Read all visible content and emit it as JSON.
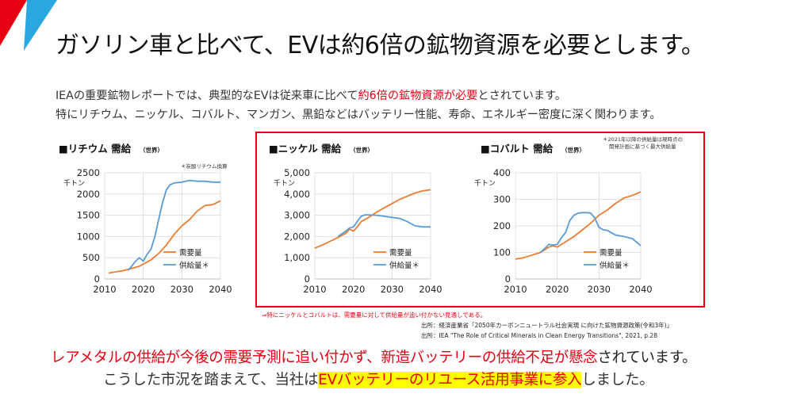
{
  "slide": {
    "title": "ガソリン車と比べて、EVは約6倍の鉱物資源を必要とします。",
    "intro_line1_a": "IEAの重要鉱物レポートでは、典型的なEVは従来車に比べて",
    "intro_line1_b": "約6倍の鉱物資源が必要",
    "intro_line1_c": "とされています。",
    "intro_line2": "特にリチウム、ニッケル、コバルト、マンガン、黒鉛などはバッテリー性能、寿命、エネルギー密度に深く関わります。",
    "note": "⇒特にニッケルとコバルトは、需要量に対して供給量が追い付かない見通しである。",
    "source1": "出所：経済産業省「2050年カーボンニュートラル社会実現 に向けた鉱物資源政策(令和3年)」",
    "source2": "出所：IEA \"The Role of Critical Minerals in Clean Energy Transitions\", 2021, p.28",
    "conclusion1_a": "レアメタルの供給が今後の需要予測に追い付かず、新造バッテリーの供給不足が懸念",
    "conclusion1_b": "されています。",
    "conclusion2_a": "こうした市況を踏まえて、当社は",
    "conclusion2_b": "EVバッテリーのリユース活用事業に参入",
    "conclusion2_c": "しました。",
    "colors": {
      "accent_red": "#e60012",
      "demand": "#ed7d31",
      "supply": "#5b9bd5",
      "highlight": "#ffff00",
      "corner_blue": "#29a8e0"
    }
  },
  "chart_data": [
    {
      "type": "line",
      "title": "■リチウム 需給",
      "title_sub": "（世界）",
      "note": "＊炭酸リチウム換算",
      "ylabel": "千トン",
      "xlim": [
        2010,
        2040
      ],
      "ylim": [
        0,
        2500
      ],
      "xticks": [
        "2010",
        "2020",
        "2030",
        "2040"
      ],
      "yticks": [
        "0",
        "500",
        "1000",
        "1500",
        "2000",
        "2500"
      ],
      "ytick_values": [
        0,
        500,
        1000,
        1500,
        2000,
        2500
      ],
      "grid": true,
      "legend_position": "lower-right",
      "series": [
        {
          "name": "需要量",
          "color": "#ed7d31",
          "x": [
            2011,
            2013,
            2015,
            2017,
            2019,
            2020,
            2021,
            2022,
            2024,
            2026,
            2028,
            2030,
            2032,
            2034,
            2036,
            2038,
            2040
          ],
          "y": [
            140,
            170,
            200,
            250,
            300,
            350,
            400,
            450,
            600,
            800,
            1050,
            1250,
            1400,
            1600,
            1730,
            1750,
            1840
          ]
        },
        {
          "name": "供給量＊",
          "color": "#5b9bd5",
          "x": [
            2016,
            2017,
            2018,
            2019,
            2020,
            2021,
            2022,
            2023,
            2024,
            2025,
            2026,
            2027,
            2028,
            2030,
            2032,
            2034,
            2036,
            2038,
            2040
          ],
          "y": [
            200,
            300,
            420,
            500,
            420,
            580,
            700,
            1000,
            1400,
            1800,
            2100,
            2220,
            2260,
            2280,
            2320,
            2300,
            2300,
            2280,
            2280
          ]
        }
      ]
    },
    {
      "type": "line",
      "title": "■ニッケル 需給",
      "title_sub": "（世界）",
      "ylabel": "千トン",
      "xlim": [
        2010,
        2040
      ],
      "ylim": [
        0,
        5000
      ],
      "xticks": [
        "2010",
        "2020",
        "2030",
        "2040"
      ],
      "yticks": [
        "0",
        "1,000",
        "2,000",
        "3,000",
        "4,000",
        "5,000"
      ],
      "ytick_values": [
        0,
        1000,
        2000,
        3000,
        4000,
        5000
      ],
      "grid": true,
      "legend_position": "lower-right",
      "series": [
        {
          "name": "需要量",
          "color": "#ed7d31",
          "x": [
            2010,
            2012,
            2014,
            2016,
            2018,
            2019,
            2020,
            2021,
            2022,
            2024,
            2026,
            2028,
            2030,
            2032,
            2034,
            2036,
            2038,
            2040
          ],
          "y": [
            1450,
            1600,
            1780,
            1950,
            2150,
            2350,
            2250,
            2450,
            2700,
            2900,
            3150,
            3350,
            3550,
            3750,
            3900,
            4050,
            4150,
            4200
          ]
        },
        {
          "name": "供給量＊",
          "color": "#5b9bd5",
          "x": [
            2016,
            2018,
            2019,
            2020,
            2021,
            2022,
            2023,
            2024,
            2026,
            2028,
            2030,
            2032,
            2034,
            2036,
            2038,
            2040
          ],
          "y": [
            2000,
            2250,
            2400,
            2450,
            2700,
            2950,
            3020,
            3020,
            3000,
            2950,
            2900,
            2850,
            2700,
            2500,
            2450,
            2450
          ]
        }
      ]
    },
    {
      "type": "line",
      "title": "■コバルト 需給",
      "title_sub": "（世界）",
      "note_line1": "＊2021年以降の供給量は現時点の",
      "note_line2": "開発計画に基づく最大供給量",
      "ylabel": "千トン",
      "xlim": [
        2010,
        2040
      ],
      "ylim": [
        0,
        400
      ],
      "xticks": [
        "2010",
        "2020",
        "2030",
        "2040"
      ],
      "yticks": [
        "0",
        "100",
        "200",
        "300",
        "400"
      ],
      "ytick_values": [
        0,
        100,
        200,
        300,
        400
      ],
      "grid": true,
      "legend_position": "lower-right",
      "series": [
        {
          "name": "需要量",
          "color": "#ed7d31",
          "x": [
            2010,
            2012,
            2014,
            2016,
            2017,
            2018,
            2019,
            2020,
            2022,
            2024,
            2026,
            2028,
            2030,
            2032,
            2034,
            2036,
            2038,
            2040
          ],
          "y": [
            75,
            80,
            90,
            100,
            110,
            120,
            125,
            120,
            140,
            160,
            185,
            210,
            240,
            260,
            285,
            305,
            315,
            328
          ]
        },
        {
          "name": "供給量＊",
          "color": "#5b9bd5",
          "x": [
            2016,
            2017,
            2018,
            2019,
            2020,
            2021,
            2022,
            2023,
            2024,
            2025,
            2026,
            2027,
            2028,
            2029,
            2030,
            2031,
            2032,
            2034,
            2036,
            2038,
            2040
          ],
          "y": [
            100,
            115,
            130,
            128,
            130,
            155,
            175,
            220,
            240,
            248,
            250,
            250,
            248,
            230,
            195,
            185,
            183,
            165,
            160,
            152,
            125
          ]
        }
      ]
    }
  ]
}
